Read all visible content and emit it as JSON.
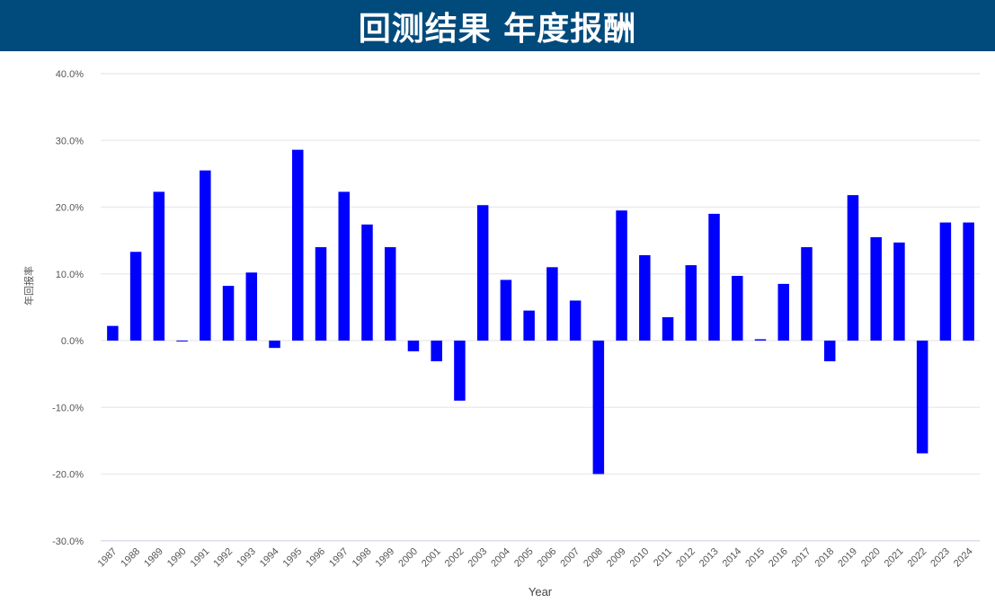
{
  "header": {
    "title": "回测结果 年度报酬",
    "bg_color": "#004a7c"
  },
  "chart_data": {
    "type": "bar",
    "title": "回测结果 年度报酬",
    "xlabel": "Year",
    "ylabel": "年回报率",
    "ylim": [
      -0.3,
      0.4
    ],
    "yticks": [
      "40.0%",
      "30.0%",
      "20.0%",
      "10.0%",
      "0.0%",
      "-10.0%",
      "-20.0%",
      "-30.0%"
    ],
    "grid": true,
    "legend": null,
    "bar_color": "#0000ff",
    "categories": [
      "1987",
      "1988",
      "1989",
      "1990",
      "1991",
      "1992",
      "1993",
      "1994",
      "1995",
      "1996",
      "1997",
      "1998",
      "1999",
      "2000",
      "2001",
      "2002",
      "2003",
      "2004",
      "2005",
      "2006",
      "2007",
      "2008",
      "2009",
      "2010",
      "2011",
      "2012",
      "2013",
      "2014",
      "2015",
      "2016",
      "2017",
      "2018",
      "2019",
      "2020",
      "2021",
      "2022",
      "2023",
      "2024"
    ],
    "values": [
      2.2,
      13.3,
      22.3,
      -0.1,
      25.5,
      8.2,
      10.2,
      -1.1,
      28.6,
      14.0,
      22.3,
      17.4,
      14.0,
      -1.6,
      -3.1,
      -9.0,
      20.3,
      9.1,
      4.5,
      11.0,
      6.0,
      -20.0,
      19.5,
      12.8,
      3.5,
      11.3,
      19.0,
      9.7,
      0.2,
      8.5,
      14.0,
      -3.1,
      21.8,
      15.5,
      14.7,
      -16.9,
      17.7,
      17.7
    ],
    "value_unit": "%"
  }
}
